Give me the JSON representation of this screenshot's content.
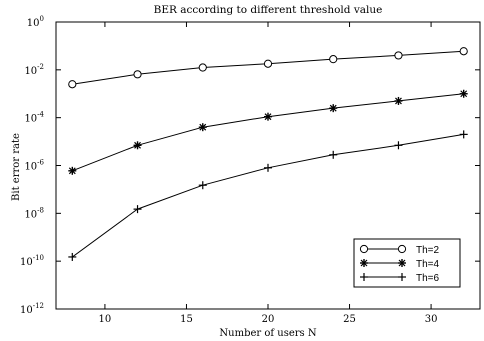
{
  "chart_data": {
    "type": "line",
    "title": "BER according to different threshold value",
    "xlabel": "Number of users N",
    "ylabel": "Bit error rate",
    "xlim": [
      7,
      33
    ],
    "xticks": [
      10,
      15,
      20,
      25,
      30
    ],
    "y_scale": "log",
    "ylim": [
      1e-12,
      1
    ],
    "yticks": [
      {
        "exp": 0,
        "base": "10",
        "sup": "0"
      },
      {
        "exp": -2,
        "base": "10",
        "sup": "-2"
      },
      {
        "exp": -4,
        "base": "10",
        "sup": "-4"
      },
      {
        "exp": -6,
        "base": "10",
        "sup": "-6"
      },
      {
        "exp": -8,
        "base": "10",
        "sup": "-8"
      },
      {
        "exp": -10,
        "base": "10",
        "sup": "-10"
      },
      {
        "exp": -12,
        "base": "10",
        "sup": "-12"
      }
    ],
    "grid": false,
    "legend_position": "lower-right",
    "x": [
      8,
      12,
      16,
      20,
      24,
      28,
      32
    ],
    "series": [
      {
        "name": "Th=2",
        "marker": "circle",
        "y": [
          0.0025,
          0.0065,
          0.0125,
          0.018,
          0.028,
          0.04,
          0.06
        ]
      },
      {
        "name": "Th=4",
        "marker": "star",
        "y": [
          6e-07,
          7e-06,
          4e-05,
          0.00011,
          0.00025,
          0.0005,
          0.001
        ]
      },
      {
        "name": "Th=6",
        "marker": "plus",
        "y": [
          1.5e-10,
          1.5e-08,
          1.5e-07,
          8e-07,
          2.8e-06,
          7e-06,
          2e-05
        ]
      }
    ]
  }
}
